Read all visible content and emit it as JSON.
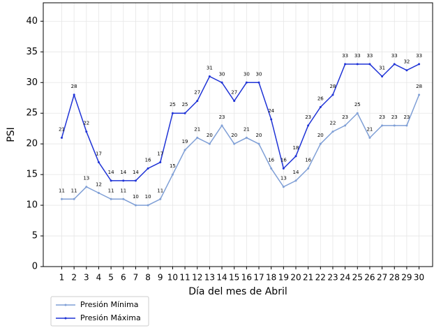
{
  "chart_data": {
    "type": "line",
    "x_label": "Día del mes de  Abril",
    "y_label": "PSI",
    "x": [
      1,
      2,
      3,
      4,
      5,
      6,
      7,
      8,
      9,
      10,
      11,
      12,
      13,
      14,
      15,
      16,
      17,
      18,
      19,
      20,
      21,
      22,
      23,
      24,
      25,
      26,
      27,
      28,
      29,
      30
    ],
    "xlim": [
      -0.5,
      31.1
    ],
    "xticks": [
      1,
      2,
      3,
      4,
      5,
      6,
      7,
      8,
      9,
      10,
      11,
      12,
      13,
      14,
      15,
      16,
      17,
      18,
      19,
      20,
      21,
      22,
      23,
      24,
      25,
      26,
      27,
      28,
      29,
      30
    ],
    "ylim": [
      0,
      43
    ],
    "yticks": [
      0,
      5,
      10,
      15,
      20,
      25,
      30,
      35,
      40
    ],
    "grid": true,
    "legend": "below-left",
    "series": [
      {
        "name": "Presión Mínima",
        "color": "#7f9fd6",
        "values": [
          11,
          11,
          13,
          12,
          11,
          11,
          10,
          10,
          11,
          15,
          19,
          21,
          20,
          23,
          20,
          21,
          20,
          16,
          13,
          14,
          16,
          20,
          22,
          23,
          25,
          21,
          23,
          23,
          23,
          28
        ]
      },
      {
        "name": "Presión Máxima",
        "color": "#1f33d6",
        "values": [
          21,
          28,
          22,
          17,
          14,
          14,
          14,
          16,
          17,
          25,
          25,
          27,
          31,
          30,
          27,
          30,
          30,
          24,
          16,
          18,
          23,
          26,
          28,
          33,
          33,
          33,
          31,
          33,
          32,
          33
        ]
      }
    ]
  }
}
